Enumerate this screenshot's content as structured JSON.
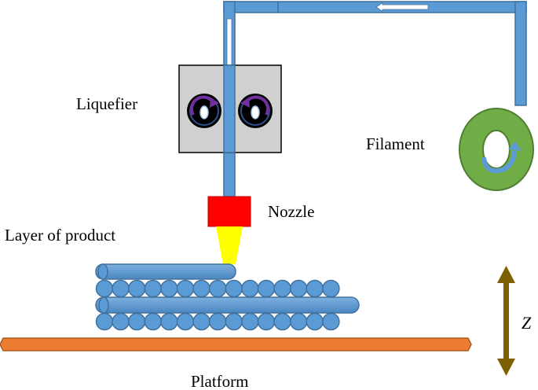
{
  "labels": {
    "liquefier": "Liquefier",
    "filament": "Filament",
    "nozzle": "Nozzle",
    "layer": "Layer of product",
    "platform": "Platform",
    "axis": "Z"
  },
  "colors": {
    "filament_blue": "#5b9bd5",
    "filament_stroke": "#41719c",
    "liquefier_box": "#d0d0d0",
    "nozzle": "#ff0000",
    "extrusion": "#ffff00",
    "spool": "#70ad47",
    "platform": "#ed7d31",
    "z_arrow": "#7f6000",
    "roller_arrow": "#7030a0"
  },
  "product": {
    "bottom_row_beads": 15,
    "top_row_beads": 15,
    "columns": [
      {
        "name": "left",
        "rows": 4
      },
      {
        "name": "right",
        "rows": 3
      }
    ]
  }
}
